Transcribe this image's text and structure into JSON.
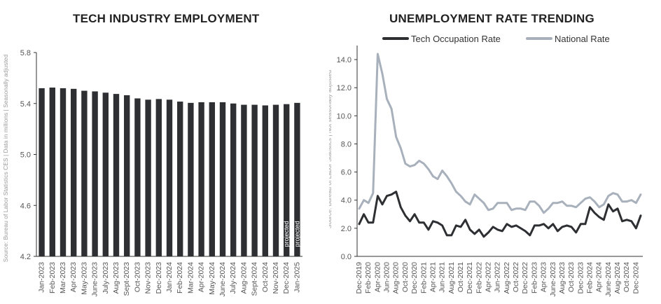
{
  "left_title": "TECH INDUSTRY EMPLOYMENT",
  "right_title": "UNEMPLOYMENT RATE TRENDING",
  "left_source": "Source: Bureau of Labor Statistics CES | Data in millions | Seasonally adjusted",
  "right_source": "Source: Bureau of Labor Statistics | Not seasonally adjusted",
  "colors": {
    "bar": "#2d2f33",
    "tech": "#2d2f33",
    "national": "#a8b1bb",
    "axis": "#333333",
    "tick": "#555555"
  },
  "chart_data": [
    {
      "type": "bar",
      "title": "TECH INDUSTRY EMPLOYMENT",
      "categories": [
        "Jan-2023",
        "Feb-2023",
        "Mar-2023",
        "Apr-2023",
        "May-2023",
        "June-2023",
        "July-2023",
        "Aug-2023",
        "Sept-2023",
        "Oct-2023",
        "Nov-2023",
        "Dec-2023",
        "Jan-2024",
        "Feb-2024",
        "Mar-2024",
        "Apr-2024",
        "May-2024",
        "June-2024",
        "July-2024",
        "Aug-2024",
        "Sept-2024",
        "Oct-2024",
        "Nov-2024",
        "Dec-2024",
        "Jan-2025"
      ],
      "values": [
        5.52,
        5.525,
        5.52,
        5.515,
        5.5,
        5.495,
        5.485,
        5.475,
        5.465,
        5.44,
        5.43,
        5.435,
        5.43,
        5.415,
        5.405,
        5.41,
        5.41,
        5.41,
        5.4,
        5.39,
        5.39,
        5.385,
        5.39,
        5.395,
        5.405
      ],
      "bar_labels": [
        "",
        "",
        "",
        "",
        "",
        "",
        "",
        "",
        "",
        "",
        "",
        "",
        "",
        "",
        "",
        "",
        "",
        "",
        "",
        "",
        "",
        "",
        "",
        "projected",
        "projected"
      ],
      "yticks": [
        4.2,
        4.6,
        5.0,
        5.4,
        5.8
      ],
      "ytick_labels": [
        "4.2",
        "4.6",
        "5.0",
        "5.4",
        "5.8"
      ],
      "ylim": [
        4.2,
        5.8
      ],
      "grid": false
    },
    {
      "type": "line",
      "title": "UNEMPLOYMENT RATE TRENDING",
      "legend_position": "top",
      "x": [
        "Dec-2019",
        "Jan-2020",
        "Feb-2020",
        "Mar-2020",
        "Apr-2020",
        "May-2020",
        "Jun-2020",
        "Jul-2020",
        "Aug-2020",
        "Sep-2020",
        "Oct-2020",
        "Nov-2020",
        "Dec-2020",
        "Jan-2021",
        "Feb-2021",
        "Mar-2021",
        "Apr-2021",
        "May-2021",
        "Jun-2021",
        "Jul-2021",
        "Aug-2021",
        "Sep-2021",
        "Oct-2021",
        "Nov-2021",
        "Dec-2021",
        "Jan-2022",
        "Feb-2022",
        "Mar-2022",
        "Apr-2022",
        "May-2022",
        "Jun-2022",
        "Jul-2022",
        "Aug-2022",
        "Sep-2022",
        "Oct-2022",
        "Nov-2022",
        "Dec-2022",
        "Jan-2023",
        "Feb-2023",
        "Mar-2023",
        "Apr-2023",
        "May-2023",
        "Jun-2023",
        "Jul-2023",
        "Aug-2023",
        "Sep-2023",
        "Oct-2023",
        "Nov-2023",
        "Dec-2023",
        "Jan-2024",
        "Feb-2024",
        "Mar-2024",
        "Apr-2024",
        "May-2024",
        "Jun-2024",
        "Jul-2024",
        "Aug-2024",
        "Sep-2024",
        "Oct-2024",
        "Nov-2024",
        "Dec-2024",
        "Jan-2025"
      ],
      "xtick_labels": [
        "Dec-2019",
        "Feb-2020",
        "Apr-2020",
        "Jun-2020",
        "Aug-2020",
        "Oct-2020",
        "Dec-2020",
        "Feb-2021",
        "Apr-2021",
        "Jun-2021",
        "Aug-2021",
        "Oct-2021",
        "Dec-2021",
        "Feb-2022",
        "Apr-2022",
        "Jun-2022",
        "Aug-2022",
        "Oct-2022",
        "Dec-2022",
        "Feb-2023",
        "Apr-2023",
        "June-2023",
        "Aug-2023",
        "Oct-2023",
        "Dec-2023",
        "Feb-2024",
        "Apr-2024",
        "June-2024",
        "Aug-2024",
        "Oct-2024",
        "Dec-2024"
      ],
      "xtick_index": [
        0,
        2,
        4,
        6,
        8,
        10,
        12,
        14,
        16,
        18,
        20,
        22,
        24,
        26,
        28,
        30,
        32,
        34,
        36,
        38,
        40,
        42,
        44,
        46,
        48,
        50,
        52,
        54,
        56,
        58,
        60
      ],
      "series": [
        {
          "name": "Tech Occupation Rate",
          "values": [
            2.3,
            3.0,
            2.4,
            2.4,
            4.3,
            3.7,
            4.3,
            4.4,
            4.6,
            3.5,
            2.9,
            2.5,
            3.0,
            2.4,
            2.4,
            1.9,
            2.5,
            2.4,
            2.2,
            1.5,
            1.5,
            2.2,
            2.1,
            2.6,
            1.9,
            1.6,
            1.9,
            1.4,
            1.7,
            2.1,
            1.9,
            1.8,
            2.3,
            2.1,
            2.2,
            2.0,
            1.8,
            1.5,
            2.2,
            2.2,
            2.3,
            2.0,
            2.3,
            1.8,
            2.1,
            2.2,
            2.1,
            1.7,
            2.3,
            2.3,
            3.5,
            3.1,
            2.8,
            2.6,
            3.7,
            3.2,
            3.4,
            2.5,
            2.6,
            2.5,
            2.0,
            2.9
          ]
        },
        {
          "name": "National Rate",
          "values": [
            3.4,
            4.0,
            3.8,
            4.5,
            14.4,
            13.0,
            11.2,
            10.5,
            8.5,
            7.7,
            6.6,
            6.4,
            6.5,
            6.8,
            6.6,
            6.2,
            5.7,
            5.5,
            6.1,
            5.7,
            5.2,
            4.6,
            4.3,
            3.9,
            3.7,
            4.4,
            4.1,
            3.8,
            3.3,
            3.4,
            3.8,
            3.8,
            3.8,
            3.3,
            3.4,
            3.4,
            3.3,
            3.9,
            3.9,
            3.6,
            3.1,
            3.4,
            3.8,
            3.8,
            3.9,
            3.6,
            3.6,
            3.5,
            3.8,
            4.1,
            4.2,
            3.9,
            3.5,
            3.7,
            4.3,
            4.5,
            4.4,
            3.9,
            3.9,
            4.0,
            3.8,
            4.4
          ]
        }
      ],
      "yticks": [
        0.0,
        2.0,
        4.0,
        6.0,
        8.0,
        10.0,
        12.0,
        14.0
      ],
      "ytick_labels": [
        "0.0",
        "2.0",
        "4.0",
        "6.0",
        "8.0",
        "10.0",
        "12.0",
        "14.0"
      ],
      "ylim": [
        0,
        15
      ],
      "grid": false
    }
  ]
}
